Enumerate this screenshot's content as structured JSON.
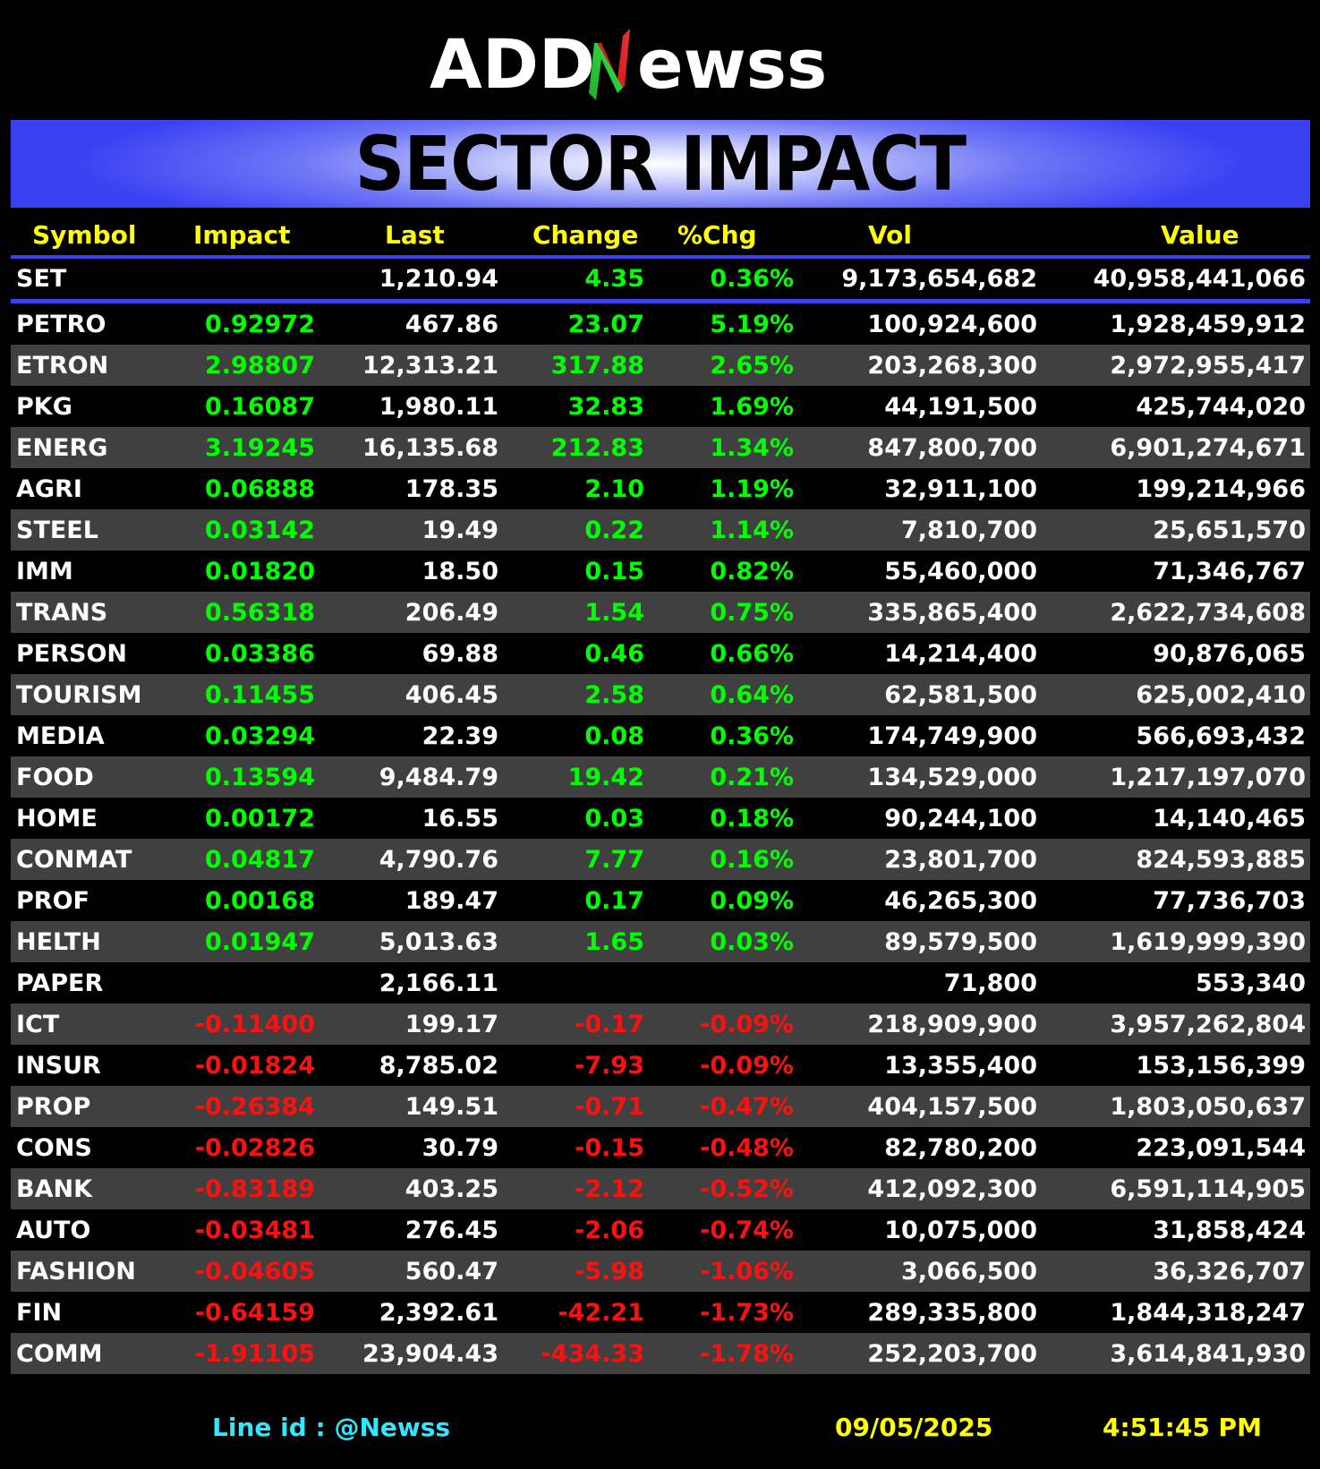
{
  "logo": {
    "prefix": "ADD",
    "suffix": "ewss"
  },
  "banner": {
    "title": "SECTOR IMPACT"
  },
  "headers": {
    "symbol": "Symbol",
    "impact": "Impact",
    "last": "Last",
    "change": "Change",
    "pct": "%Chg",
    "vol": "Vol",
    "value": "Value"
  },
  "set_row": {
    "symbol": "SET",
    "impact": "",
    "last": "1,210.94",
    "change": "4.35",
    "pct": "0.36%",
    "vol": "9,173,654,682",
    "value": "40,958,441,066",
    "dir": "pos"
  },
  "rows": [
    {
      "symbol": "PETRO",
      "impact": "0.92972",
      "last": "467.86",
      "change": "23.07",
      "pct": "5.19%",
      "vol": "100,924,600",
      "value": "1,928,459,912",
      "dir": "pos"
    },
    {
      "symbol": "ETRON",
      "impact": "2.98807",
      "last": "12,313.21",
      "change": "317.88",
      "pct": "2.65%",
      "vol": "203,268,300",
      "value": "2,972,955,417",
      "dir": "pos"
    },
    {
      "symbol": "PKG",
      "impact": "0.16087",
      "last": "1,980.11",
      "change": "32.83",
      "pct": "1.69%",
      "vol": "44,191,500",
      "value": "425,744,020",
      "dir": "pos"
    },
    {
      "symbol": "ENERG",
      "impact": "3.19245",
      "last": "16,135.68",
      "change": "212.83",
      "pct": "1.34%",
      "vol": "847,800,700",
      "value": "6,901,274,671",
      "dir": "pos"
    },
    {
      "symbol": "AGRI",
      "impact": "0.06888",
      "last": "178.35",
      "change": "2.10",
      "pct": "1.19%",
      "vol": "32,911,100",
      "value": "199,214,966",
      "dir": "pos"
    },
    {
      "symbol": "STEEL",
      "impact": "0.03142",
      "last": "19.49",
      "change": "0.22",
      "pct": "1.14%",
      "vol": "7,810,700",
      "value": "25,651,570",
      "dir": "pos"
    },
    {
      "symbol": "IMM",
      "impact": "0.01820",
      "last": "18.50",
      "change": "0.15",
      "pct": "0.82%",
      "vol": "55,460,000",
      "value": "71,346,767",
      "dir": "pos"
    },
    {
      "symbol": "TRANS",
      "impact": "0.56318",
      "last": "206.49",
      "change": "1.54",
      "pct": "0.75%",
      "vol": "335,865,400",
      "value": "2,622,734,608",
      "dir": "pos"
    },
    {
      "symbol": "PERSON",
      "impact": "0.03386",
      "last": "69.88",
      "change": "0.46",
      "pct": "0.66%",
      "vol": "14,214,400",
      "value": "90,876,065",
      "dir": "pos"
    },
    {
      "symbol": "TOURISM",
      "impact": "0.11455",
      "last": "406.45",
      "change": "2.58",
      "pct": "0.64%",
      "vol": "62,581,500",
      "value": "625,002,410",
      "dir": "pos"
    },
    {
      "symbol": "MEDIA",
      "impact": "0.03294",
      "last": "22.39",
      "change": "0.08",
      "pct": "0.36%",
      "vol": "174,749,900",
      "value": "566,693,432",
      "dir": "pos"
    },
    {
      "symbol": "FOOD",
      "impact": "0.13594",
      "last": "9,484.79",
      "change": "19.42",
      "pct": "0.21%",
      "vol": "134,529,000",
      "value": "1,217,197,070",
      "dir": "pos"
    },
    {
      "symbol": "HOME",
      "impact": "0.00172",
      "last": "16.55",
      "change": "0.03",
      "pct": "0.18%",
      "vol": "90,244,100",
      "value": "14,140,465",
      "dir": "pos"
    },
    {
      "symbol": "CONMAT",
      "impact": "0.04817",
      "last": "4,790.76",
      "change": "7.77",
      "pct": "0.16%",
      "vol": "23,801,700",
      "value": "824,593,885",
      "dir": "pos"
    },
    {
      "symbol": "PROF",
      "impact": "0.00168",
      "last": "189.47",
      "change": "0.17",
      "pct": "0.09%",
      "vol": "46,265,300",
      "value": "77,736,703",
      "dir": "pos"
    },
    {
      "symbol": "HELTH",
      "impact": "0.01947",
      "last": "5,013.63",
      "change": "1.65",
      "pct": "0.03%",
      "vol": "89,579,500",
      "value": "1,619,999,390",
      "dir": "pos"
    },
    {
      "symbol": "PAPER",
      "impact": "",
      "last": "2,166.11",
      "change": "",
      "pct": "",
      "vol": "71,800",
      "value": "553,340",
      "dir": "flat"
    },
    {
      "symbol": "ICT",
      "impact": "-0.11400",
      "last": "199.17",
      "change": "-0.17",
      "pct": "-0.09%",
      "vol": "218,909,900",
      "value": "3,957,262,804",
      "dir": "neg"
    },
    {
      "symbol": "INSUR",
      "impact": "-0.01824",
      "last": "8,785.02",
      "change": "-7.93",
      "pct": "-0.09%",
      "vol": "13,355,400",
      "value": "153,156,399",
      "dir": "neg"
    },
    {
      "symbol": "PROP",
      "impact": "-0.26384",
      "last": "149.51",
      "change": "-0.71",
      "pct": "-0.47%",
      "vol": "404,157,500",
      "value": "1,803,050,637",
      "dir": "neg"
    },
    {
      "symbol": "CONS",
      "impact": "-0.02826",
      "last": "30.79",
      "change": "-0.15",
      "pct": "-0.48%",
      "vol": "82,780,200",
      "value": "223,091,544",
      "dir": "neg"
    },
    {
      "symbol": "BANK",
      "impact": "-0.83189",
      "last": "403.25",
      "change": "-2.12",
      "pct": "-0.52%",
      "vol": "412,092,300",
      "value": "6,591,114,905",
      "dir": "neg"
    },
    {
      "symbol": "AUTO",
      "impact": "-0.03481",
      "last": "276.45",
      "change": "-2.06",
      "pct": "-0.74%",
      "vol": "10,075,000",
      "value": "31,858,424",
      "dir": "neg"
    },
    {
      "symbol": "FASHION",
      "impact": "-0.04605",
      "last": "560.47",
      "change": "-5.98",
      "pct": "-1.06%",
      "vol": "3,066,500",
      "value": "36,326,707",
      "dir": "neg"
    },
    {
      "symbol": "FIN",
      "impact": "-0.64159",
      "last": "2,392.61",
      "change": "-42.21",
      "pct": "-1.73%",
      "vol": "289,335,800",
      "value": "1,844,318,247",
      "dir": "neg"
    },
    {
      "symbol": "COMM",
      "impact": "-1.91105",
      "last": "23,904.43",
      "change": "-434.33",
      "pct": "-1.78%",
      "vol": "252,203,700",
      "value": "3,614,841,930",
      "dir": "neg"
    }
  ],
  "footer": {
    "line_id": "Line id  : @Newss",
    "date": "09/05/2025",
    "time": "4:51:45 PM"
  },
  "colors": {
    "positive": "#00ff00",
    "negative": "#ff1010",
    "header": "#ffff00",
    "accent": "#3a41f3",
    "line_id": "#33e6ff"
  }
}
